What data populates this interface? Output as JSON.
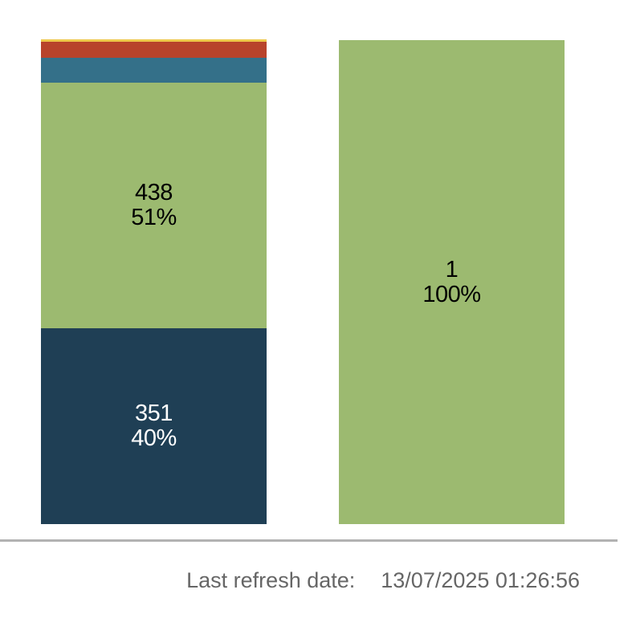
{
  "chart_data": {
    "type": "bar",
    "subtype": "100%-stacked-columns",
    "orientation": "vertical",
    "legend": "none",
    "axes": "none",
    "grid": false,
    "columns": [
      {
        "name": "column-1",
        "total_estimated": 867,
        "segments_top_to_bottom": [
          {
            "series": "yellow",
            "color": "#EEC94B",
            "height_pct": 0.5,
            "value_estimated": 4,
            "value_label": null,
            "pct_label": null,
            "label_color": null
          },
          {
            "series": "red",
            "color": "#B8432B",
            "height_pct": 3.31,
            "value_estimated": 29,
            "value_label": null,
            "pct_label": null,
            "label_color": null
          },
          {
            "series": "teal",
            "color": "#347089",
            "height_pct": 5.13,
            "value_estimated": 44,
            "value_label": null,
            "pct_label": null,
            "label_color": null
          },
          {
            "series": "green",
            "color": "#9CBA70",
            "height_pct": 50.66,
            "value": 438,
            "value_label": "438",
            "pct_label": "51%",
            "label_color": "#000000"
          },
          {
            "series": "navy",
            "color": "#1F3F55",
            "height_pct": 40.4,
            "value": 351,
            "value_label": "351",
            "pct_label": "40%",
            "label_color": "#ffffff"
          }
        ]
      },
      {
        "name": "column-2",
        "total": 1,
        "segments_top_to_bottom": [
          {
            "series": "green",
            "color": "#9CBA70",
            "height_pct": 100,
            "value": 1,
            "value_label": "1",
            "pct_label": "100%",
            "label_color": "#000000"
          }
        ]
      }
    ]
  },
  "colors": {
    "divider": "#B2B2B2",
    "footer_text": "#666666",
    "background": "#FFFFFF"
  },
  "footer": {
    "label": "Last refresh date:",
    "value": "13/07/2025 01:26:56"
  }
}
